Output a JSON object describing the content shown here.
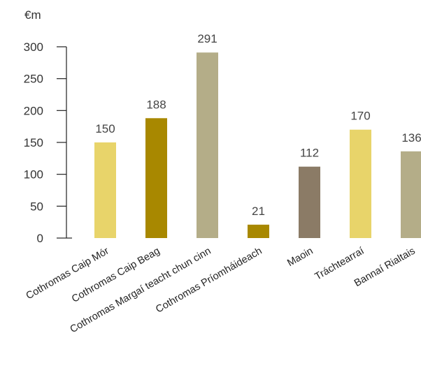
{
  "chart_data": {
    "type": "bar",
    "ylabel": "€m",
    "ylim": [
      0,
      300
    ],
    "yticks": [
      0,
      50,
      100,
      150,
      200,
      250,
      300
    ],
    "categories": [
      "Cothromas Caip Mór",
      "Cothromas Caip Beag",
      "Cothromas Margaí teacht chun cinn",
      "Cothromas Príomháideach",
      "Maoin",
      "Tráchtearraí",
      "Bannaí Rialtais"
    ],
    "values": [
      150,
      188,
      291,
      21,
      112,
      170,
      136
    ],
    "value_labels": [
      "150",
      "188",
      "291",
      "21",
      "112",
      "170",
      "136"
    ],
    "colors": [
      "#e8d46a",
      "#a88800",
      "#b4ad88",
      "#a88800",
      "#8b7b66",
      "#e8d46a",
      "#b4ad88"
    ],
    "grid": false,
    "legend": "none"
  }
}
